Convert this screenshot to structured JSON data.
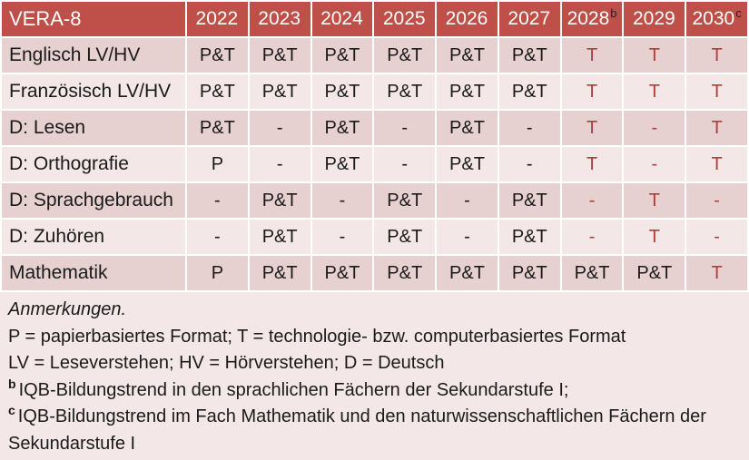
{
  "table": {
    "corner_label": "VERA-8",
    "years": [
      {
        "text": "2022",
        "sup": ""
      },
      {
        "text": "2023",
        "sup": ""
      },
      {
        "text": "2024",
        "sup": ""
      },
      {
        "text": "2025",
        "sup": ""
      },
      {
        "text": "2026",
        "sup": ""
      },
      {
        "text": "2027",
        "sup": ""
      },
      {
        "text": "2028",
        "sup": "b"
      },
      {
        "text": "2029",
        "sup": ""
      },
      {
        "text": "2030",
        "sup": "c"
      }
    ],
    "rows": [
      {
        "label": "Englisch LV/HV",
        "cells": [
          {
            "t": "P&T"
          },
          {
            "t": "P&T"
          },
          {
            "t": "P&T"
          },
          {
            "t": "P&T"
          },
          {
            "t": "P&T"
          },
          {
            "t": "P&T"
          },
          {
            "t": "T",
            "tone": "red"
          },
          {
            "t": "T",
            "tone": "red"
          },
          {
            "t": "T",
            "tone": "red"
          }
        ]
      },
      {
        "label": "Französisch LV/HV",
        "cells": [
          {
            "t": "P&T"
          },
          {
            "t": "P&T"
          },
          {
            "t": "P&T"
          },
          {
            "t": "P&T"
          },
          {
            "t": "P&T"
          },
          {
            "t": "P&T"
          },
          {
            "t": "T",
            "tone": "red"
          },
          {
            "t": "T",
            "tone": "red"
          },
          {
            "t": "T",
            "tone": "red"
          }
        ]
      },
      {
        "label": "D: Lesen",
        "cells": [
          {
            "t": "P&T"
          },
          {
            "t": "-"
          },
          {
            "t": "P&T"
          },
          {
            "t": "-"
          },
          {
            "t": "P&T"
          },
          {
            "t": "-"
          },
          {
            "t": "T",
            "tone": "red"
          },
          {
            "t": "-",
            "tone": "red"
          },
          {
            "t": "T",
            "tone": "red"
          }
        ]
      },
      {
        "label": "D: Orthografie",
        "cells": [
          {
            "t": "P"
          },
          {
            "t": "-"
          },
          {
            "t": "P&T"
          },
          {
            "t": "-"
          },
          {
            "t": "P&T"
          },
          {
            "t": "-"
          },
          {
            "t": "T",
            "tone": "red"
          },
          {
            "t": "-",
            "tone": "red"
          },
          {
            "t": "T",
            "tone": "red"
          }
        ]
      },
      {
        "label": "D: Sprachgebrauch",
        "cells": [
          {
            "t": "-"
          },
          {
            "t": "P&T"
          },
          {
            "t": "-"
          },
          {
            "t": "P&T"
          },
          {
            "t": "-"
          },
          {
            "t": "P&T"
          },
          {
            "t": "-",
            "tone": "red"
          },
          {
            "t": "T",
            "tone": "red"
          },
          {
            "t": "-",
            "tone": "red"
          }
        ]
      },
      {
        "label": "D: Zuhören",
        "cells": [
          {
            "t": "-"
          },
          {
            "t": "P&T"
          },
          {
            "t": "-"
          },
          {
            "t": "P&T"
          },
          {
            "t": "-"
          },
          {
            "t": "P&T"
          },
          {
            "t": "-",
            "tone": "red"
          },
          {
            "t": "T",
            "tone": "red"
          },
          {
            "t": "-",
            "tone": "red"
          }
        ]
      },
      {
        "label": "Mathematik",
        "cells": [
          {
            "t": "P"
          },
          {
            "t": "P&T"
          },
          {
            "t": "P&T"
          },
          {
            "t": "P&T"
          },
          {
            "t": "P&T"
          },
          {
            "t": "P&T"
          },
          {
            "t": "P&T"
          },
          {
            "t": "P&T"
          },
          {
            "t": "T",
            "tone": "red"
          }
        ]
      }
    ]
  },
  "notes": {
    "title": "Anmerkungen.",
    "line_formats": "P = papierbasiertes Format; T = technologie- bzw. computerbasiertes Format",
    "line_abbrev": "LV = Leseverstehen; HV = Hörverstehen; D = Deutsch",
    "fn_b_marker": "b",
    "fn_b_text": "IQB-Bildungstrend in den sprachlichen Fächern der Sekundarstufe I;",
    "fn_c_marker": "c",
    "fn_c_text": "IQB-Bildungstrend im Fach Mathematik und den naturwissenschaftlichen Fächern der Sekundarstufe I"
  },
  "colors": {
    "header_bg": "#BF5049",
    "header_text": "#FFFFFF",
    "band_dark": "#E7D0D0",
    "band_light": "#F3E8E7",
    "notes_bg": "#F3E8E7",
    "text_black": "#1A1A1A",
    "text_red": "#A6403C"
  }
}
